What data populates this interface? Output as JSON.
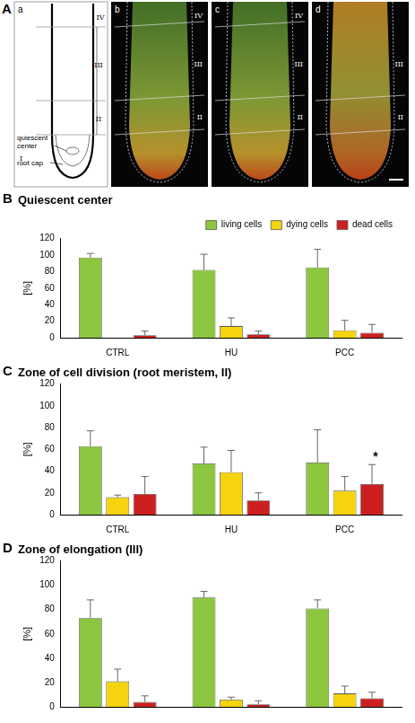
{
  "panel_a": {
    "panel": "A",
    "schematic": {
      "label": "a",
      "zones": [
        "IV",
        "III",
        "II",
        "I"
      ],
      "notes": [
        "quiescent center",
        "root cap"
      ]
    },
    "images": [
      {
        "label": "b",
        "zones": [
          "IV",
          "III",
          "II"
        ]
      },
      {
        "label": "c",
        "zones": [
          "IV",
          "III",
          "II"
        ]
      },
      {
        "label": "d",
        "zones": [
          "III",
          "II"
        ]
      }
    ]
  },
  "chart_data": [
    {
      "panel": "B",
      "type": "bar",
      "title": "Quiescent center",
      "y_label": "[%]",
      "categories": [
        "CTRL",
        "HU",
        "PCC"
      ],
      "ylim": [
        0,
        120
      ],
      "yticks": [
        0,
        20,
        40,
        60,
        80,
        100,
        120
      ],
      "grid": false,
      "legend": "top",
      "series": [
        {
          "name": "living cells",
          "color": "#8cc63f",
          "values": [
            97,
            82,
            85
          ],
          "errors": [
            5,
            19,
            22
          ]
        },
        {
          "name": "dying cells",
          "color": "#f5d40f",
          "values": [
            0,
            14,
            9
          ],
          "errors": [
            0,
            10,
            12
          ]
        },
        {
          "name": "dead cells",
          "color": "#cc2020",
          "values": [
            3,
            4,
            6
          ],
          "errors": [
            5,
            4,
            10
          ]
        }
      ]
    },
    {
      "panel": "C",
      "type": "bar",
      "title": "Zone of cell division (root meristem, II)",
      "y_label": "[%]",
      "categories": [
        "CTRL",
        "HU",
        "PCC"
      ],
      "ylim": [
        0,
        120
      ],
      "yticks": [
        0,
        20,
        40,
        60,
        80,
        100,
        120
      ],
      "grid": false,
      "series": [
        {
          "color": "#8cc63f",
          "values": [
            63,
            47,
            48
          ],
          "errors": [
            14,
            15,
            30
          ]
        },
        {
          "color": "#f5d40f",
          "values": [
            16,
            39,
            22
          ],
          "errors": [
            2,
            20,
            13
          ]
        },
        {
          "color": "#cc2020",
          "values": [
            19,
            13,
            28
          ],
          "errors": [
            16,
            7,
            18
          ],
          "significance": [
            null,
            null,
            "*"
          ]
        }
      ]
    },
    {
      "panel": "D",
      "type": "bar",
      "title": "Zone of elongation (III)",
      "y_label": "[%]",
      "categories": [
        null,
        null,
        null
      ],
      "tick_labels": "y",
      "ylim": [
        0,
        120
      ],
      "yticks": [
        0,
        20,
        40,
        60,
        80,
        100,
        120
      ],
      "grid": false,
      "series": [
        {
          "color": "#8cc63f",
          "values": [
            73,
            90,
            81
          ],
          "errors": [
            15,
            5,
            7
          ]
        },
        {
          "color": "#f5d40f",
          "values": [
            21,
            6,
            11
          ],
          "errors": [
            10,
            2,
            6
          ]
        },
        {
          "color": "#cc2020",
          "values": [
            4,
            2,
            7
          ],
          "errors": [
            5,
            3,
            5
          ]
        }
      ]
    }
  ]
}
